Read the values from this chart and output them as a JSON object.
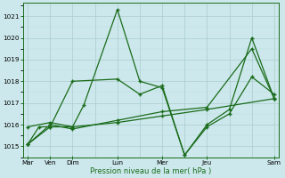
{
  "xlabel": "Pression niveau de la mer( hPa )",
  "bg_color": "#cce8ec",
  "grid_color_major": "#aacccc",
  "grid_color_minor": "#bbdddd",
  "line_color": "#1a6b1a",
  "ylim": [
    1014.5,
    1021.6
  ],
  "xlim": [
    -0.2,
    11.2
  ],
  "ytick_vals": [
    1015,
    1016,
    1017,
    1018,
    1019,
    1020,
    1021
  ],
  "xtick_major_pos": [
    0,
    1,
    2,
    4,
    6,
    8,
    11
  ],
  "xtick_major_labels": [
    "Mar",
    "Ven",
    "Dim",
    "Lun",
    "Mer",
    "Jeu",
    "Sam"
  ],
  "xtick_minor_pos": [
    3,
    5,
    7,
    9,
    10
  ],
  "series1_x": [
    0,
    0.5,
    1,
    2,
    2.5,
    4,
    5,
    6,
    7,
    8,
    9,
    10,
    11
  ],
  "series1_y": [
    1015.1,
    1015.9,
    1015.9,
    1015.9,
    1016.9,
    1021.3,
    1018.0,
    1017.7,
    1014.6,
    1016.0,
    1016.7,
    1020.0,
    1017.2
  ],
  "series2_x": [
    0,
    1,
    2,
    4,
    5,
    6,
    7,
    8,
    9,
    10,
    11
  ],
  "series2_y": [
    1015.1,
    1015.9,
    1018.0,
    1018.1,
    1017.4,
    1017.8,
    1014.6,
    1015.9,
    1016.5,
    1018.2,
    1017.4
  ],
  "series3_x": [
    0,
    1,
    2,
    4,
    6,
    8,
    11
  ],
  "series3_y": [
    1015.9,
    1016.1,
    1015.9,
    1016.1,
    1016.4,
    1016.7,
    1017.2
  ],
  "series4_x": [
    0,
    1,
    2,
    4,
    6,
    8,
    10,
    11
  ],
  "series4_y": [
    1015.1,
    1016.0,
    1015.8,
    1016.2,
    1016.6,
    1016.8,
    1019.5,
    1017.2
  ]
}
